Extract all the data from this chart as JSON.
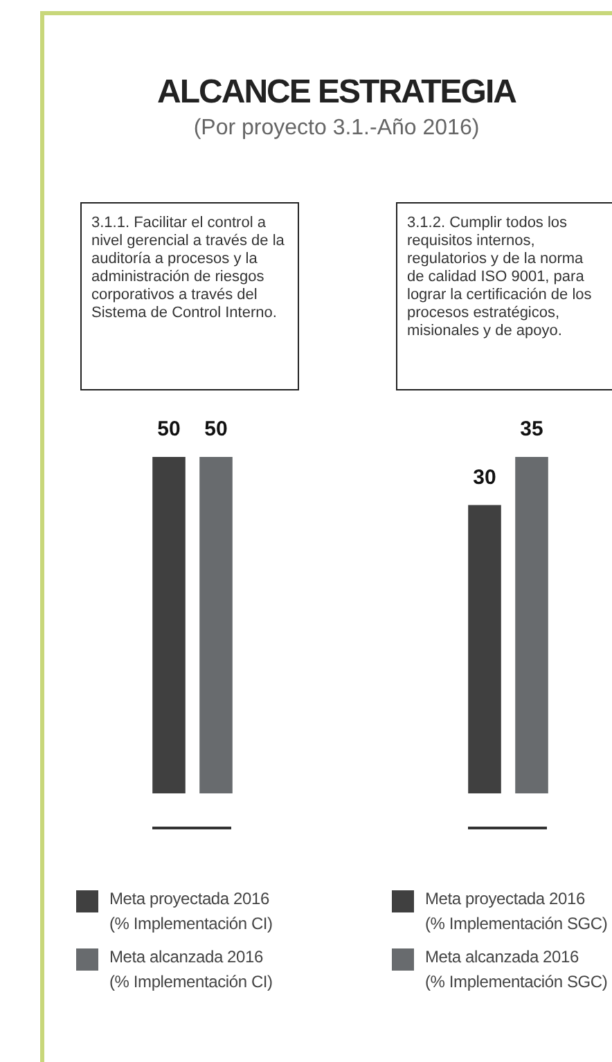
{
  "chart_data": [
    {
      "type": "bar",
      "title": "ALCANCE ESTRATEGIA",
      "subtitle": "(Por proyecto 3.1.-Año 2016)",
      "annotations": [
        "3.1.1. Facilitar el control a nivel gerencial a través de la auditoría a procesos y la administración de riesgos corporativos a través del Sistema de Control Interno."
      ],
      "categories": [
        null
      ],
      "series": [
        {
          "name": "Meta proyectada 2016\n(% Implementación CI)",
          "color": "#404040",
          "values": [
            50
          ]
        },
        {
          "name": "Meta alcanzada 2016\n(% Implementación CI)",
          "color": "#686b6e",
          "values": [
            50
          ]
        }
      ],
      "data_labels": true,
      "legend": "bottom"
    },
    {
      "type": "bar",
      "annotations": [
        "3.1.2. Cumplir todos los requisitos internos, regulatorios y de la norma de calidad ISO 9001, para lograr la certificación de los procesos estratégicos, misionales y de apoyo."
      ],
      "categories": [
        null
      ],
      "series": [
        {
          "name": "Meta proyectada 2016\n(% Implementación SGC)",
          "color": "#404040",
          "values": [
            30
          ]
        },
        {
          "name": "Meta alcanzada 2016\n(% Implementación SGC)",
          "color": "#686b6e",
          "values": [
            35
          ]
        }
      ],
      "data_labels": true,
      "legend": "bottom"
    }
  ]
}
